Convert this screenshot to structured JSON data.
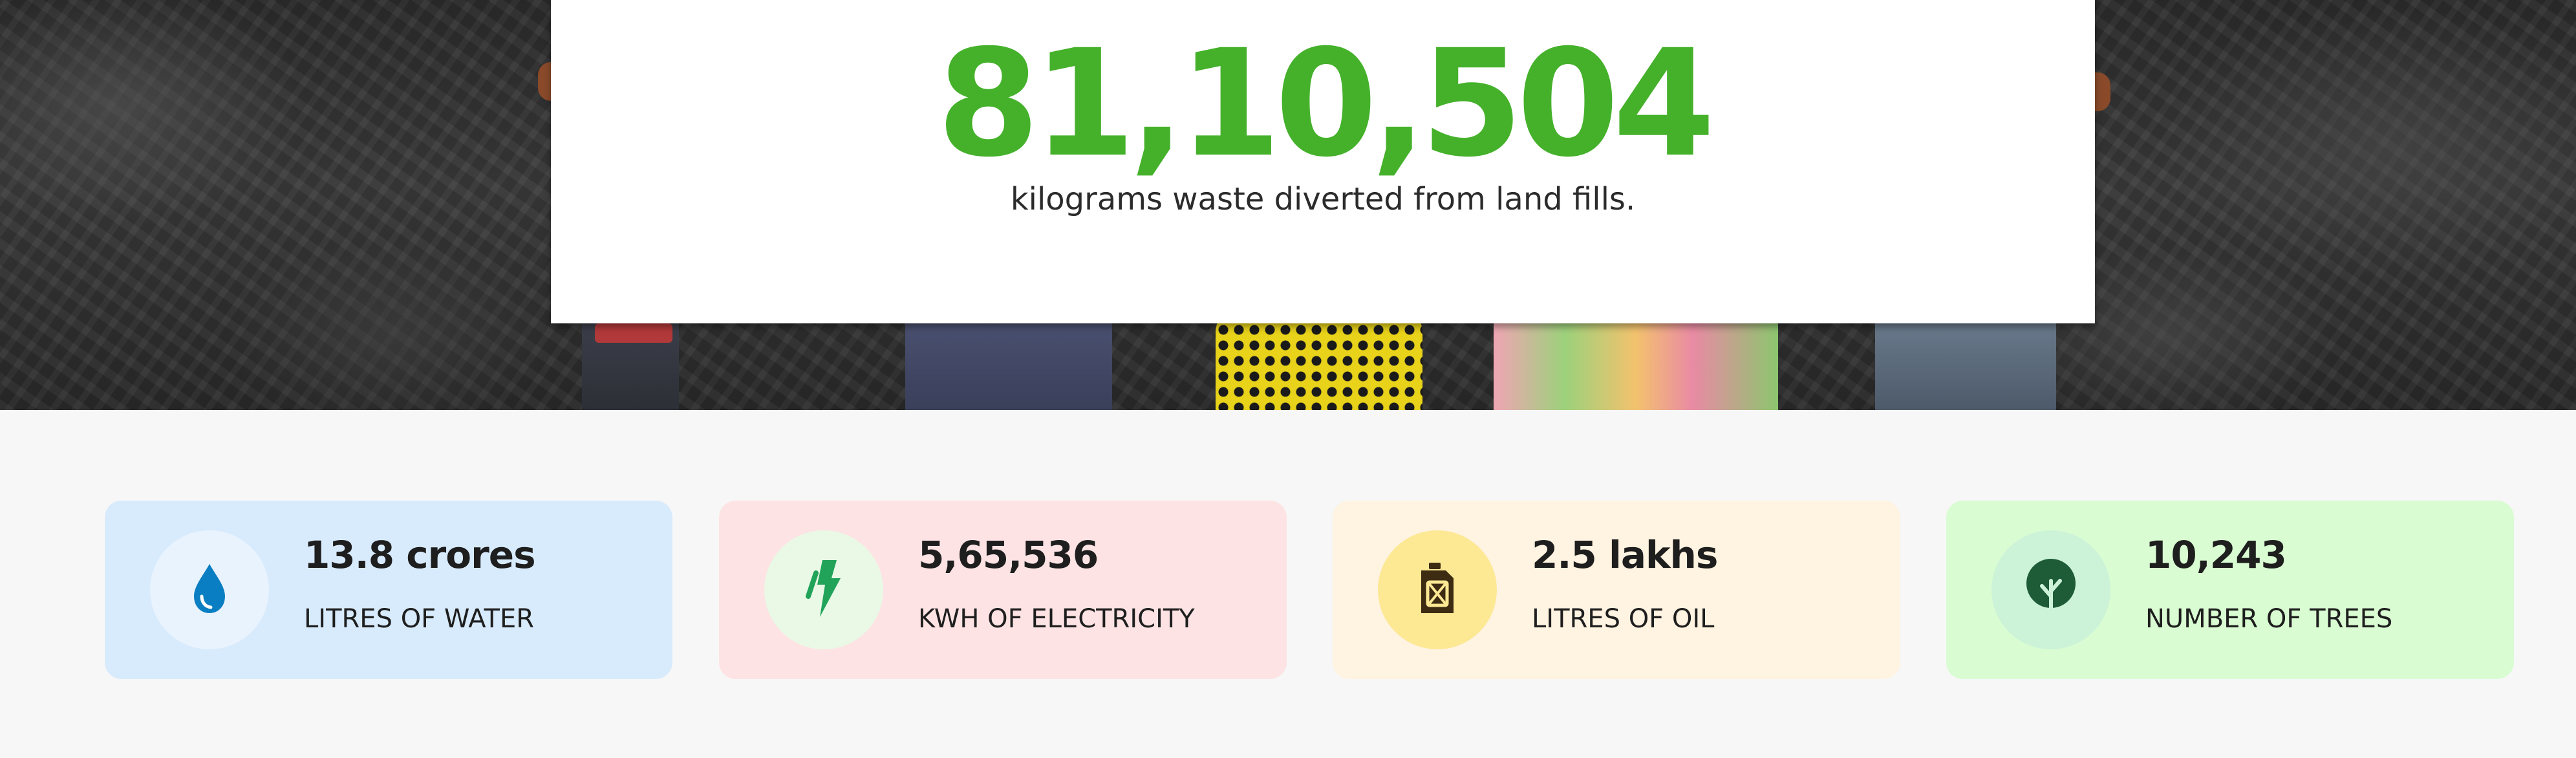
{
  "hero": {
    "number": "81,10,504",
    "caption": "kilograms waste diverted from land fills."
  },
  "stats": [
    {
      "value": "13.8 crores",
      "label": "LITRES OF WATER",
      "icon": "water-drop-icon",
      "icon_color": "#0a7ec2"
    },
    {
      "value": "5,65,536",
      "label": "KWH OF ELECTRICITY",
      "icon": "lightning-bolt-icon",
      "icon_color": "#22a35a"
    },
    {
      "value": "2.5 lakhs",
      "label": "LITRES OF OIL",
      "icon": "fuel-can-icon",
      "icon_color": "#3d2b12"
    },
    {
      "value": "10,243",
      "label": "NUMBER OF TREES",
      "icon": "tree-icon",
      "icon_color": "#1d5c36"
    }
  ],
  "colors": {
    "accent": "#45b12b",
    "water_card": "#d8ebfd",
    "electricity_card": "#fde3e4",
    "oil_card": "#fff3e1",
    "trees_card": "#d9fcd2"
  }
}
